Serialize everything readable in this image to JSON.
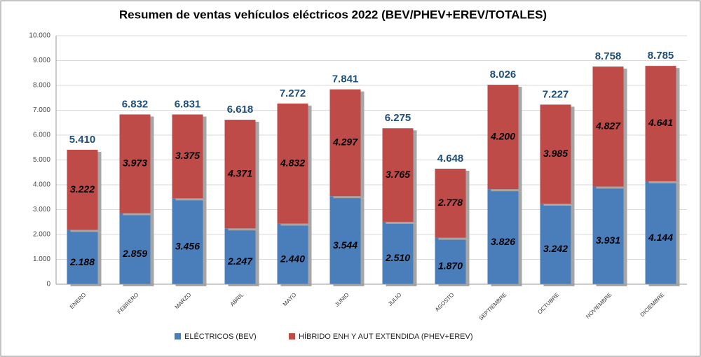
{
  "chart_data": {
    "type": "stacked_bar",
    "title": "Resumen de ventas vehículos eléctricos 2022 (BEV/PHEV+EREV/TOTALES)",
    "categories": [
      "ENERO",
      "FEBRERO",
      "MARZO",
      "ABRIL",
      "MAYO",
      "JUNIO",
      "JULIO",
      "AGOSTO",
      "SEPTIEMBRE",
      "OCTUBRE",
      "NOVIEMBRE",
      "DICIEMBRE"
    ],
    "series": [
      {
        "name": "ELÉCTRICOS (BEV)",
        "color": "#4a7ebb",
        "values": [
          2188,
          2859,
          3456,
          2247,
          2440,
          3544,
          2510,
          1870,
          3826,
          3242,
          3931,
          4144
        ],
        "value_labels": [
          "2.188",
          "2.859",
          "3.456",
          "2.247",
          "2.440",
          "3.544",
          "2.510",
          "1.870",
          "3.826",
          "3.242",
          "3.931",
          "4.144"
        ]
      },
      {
        "name": "HÍBRIDO ENH Y AUT EXTENDIDA (PHEV+EREV)",
        "color": "#be4b48",
        "values": [
          3222,
          3973,
          3375,
          4371,
          4832,
          4297,
          3765,
          2778,
          4200,
          3985,
          4827,
          4641
        ],
        "value_labels": [
          "3.222",
          "3.973",
          "3.375",
          "4.371",
          "4.832",
          "4.297",
          "3.765",
          "2.778",
          "4.200",
          "3.985",
          "4.827",
          "4.641"
        ]
      }
    ],
    "totals": {
      "values": [
        5410,
        6832,
        6831,
        6618,
        7272,
        7841,
        6275,
        4648,
        8026,
        7227,
        8758,
        8785
      ],
      "value_labels": [
        "5.410",
        "6.832",
        "6.831",
        "6.618",
        "7.272",
        "7.841",
        "6.275",
        "4.648",
        "8.026",
        "7.227",
        "8.758",
        "8.785"
      ]
    },
    "ylim": [
      0,
      10000
    ],
    "yticks": [
      0,
      {
        "value": 1000,
        "label": "1.000"
      },
      {
        "value": 2000,
        "label": "2.000"
      },
      {
        "value": 3000,
        "label": "3.000"
      },
      {
        "value": 4000,
        "label": "4.000"
      },
      {
        "value": 5000,
        "label": "5.000"
      },
      {
        "value": 6000,
        "label": "6.000"
      },
      {
        "value": 7000,
        "label": "7.000"
      },
      {
        "value": 8000,
        "label": "8.000"
      },
      {
        "value": 9000,
        "label": "9.000"
      },
      {
        "value": 10000,
        "label": "10.000"
      }
    ],
    "grid": true,
    "legend": "bottom"
  }
}
